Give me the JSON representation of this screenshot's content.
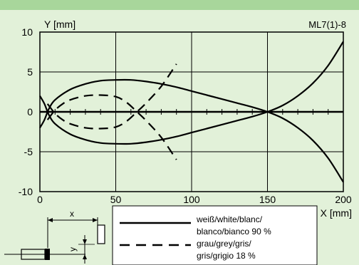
{
  "figure_id": "ML7(1)-8",
  "chart_data": {
    "type": "line",
    "ylabel": "Y [mm]",
    "xlabel": "X [mm]",
    "xlim": [
      0,
      200
    ],
    "ylim": [
      -10,
      10
    ],
    "x_ticks": [
      "0",
      "50",
      "100",
      "150",
      "200"
    ],
    "y_ticks": [
      "10",
      "5",
      "0",
      "-5",
      "-10"
    ],
    "grid": true,
    "series": [
      {
        "name": "weiß/white/blanc/ blanco/bianco 90 %",
        "style": "solid",
        "segments": [
          [
            [
              0,
              -2.0
            ],
            [
              3,
              -1.0
            ],
            [
              6,
              0.4
            ],
            [
              10,
              1.5
            ],
            [
              20,
              2.8
            ],
            [
              30,
              3.5
            ],
            [
              40,
              3.9
            ],
            [
              50,
              4.0
            ],
            [
              60,
              4.0
            ],
            [
              70,
              3.8
            ],
            [
              80,
              3.5
            ],
            [
              90,
              3.1
            ],
            [
              100,
              2.6
            ],
            [
              110,
              2.1
            ],
            [
              120,
              1.6
            ],
            [
              130,
              1.1
            ],
            [
              140,
              0.6
            ],
            [
              150,
              0.0
            ],
            [
              160,
              -0.8
            ],
            [
              170,
              -2.0
            ],
            [
              180,
              -3.6
            ],
            [
              190,
              -5.8
            ],
            [
              200,
              -8.8
            ]
          ],
          [
            [
              0,
              2.0
            ],
            [
              3,
              1.0
            ],
            [
              6,
              -0.4
            ],
            [
              10,
              -1.5
            ],
            [
              20,
              -2.8
            ],
            [
              30,
              -3.5
            ],
            [
              40,
              -3.9
            ],
            [
              50,
              -4.0
            ],
            [
              60,
              -4.0
            ],
            [
              70,
              -3.8
            ],
            [
              80,
              -3.5
            ],
            [
              90,
              -3.1
            ],
            [
              100,
              -2.6
            ],
            [
              110,
              -2.1
            ],
            [
              120,
              -1.6
            ],
            [
              130,
              -1.1
            ],
            [
              140,
              -0.6
            ],
            [
              150,
              0.0
            ],
            [
              160,
              0.8
            ],
            [
              170,
              2.0
            ],
            [
              180,
              3.6
            ],
            [
              190,
              5.8
            ],
            [
              200,
              8.8
            ]
          ]
        ]
      },
      {
        "name": "grau/grey/gris/ gris/grigio 18 %",
        "style": "dashed",
        "segments": [
          [
            [
              5,
              -1.0
            ],
            [
              10,
              0.2
            ],
            [
              15,
              1.0
            ],
            [
              20,
              1.5
            ],
            [
              30,
              2.0
            ],
            [
              40,
              2.1
            ],
            [
              50,
              1.9
            ],
            [
              57,
              1.2
            ],
            [
              64,
              0.0
            ],
            [
              70,
              -1.1
            ],
            [
              80,
              -3.2
            ],
            [
              90,
              -6.0
            ]
          ],
          [
            [
              5,
              1.0
            ],
            [
              10,
              -0.2
            ],
            [
              15,
              -1.0
            ],
            [
              20,
              -1.5
            ],
            [
              30,
              -2.0
            ],
            [
              40,
              -2.1
            ],
            [
              50,
              -1.9
            ],
            [
              57,
              -1.2
            ],
            [
              64,
              0.0
            ],
            [
              70,
              1.1
            ],
            [
              80,
              3.2
            ],
            [
              90,
              6.0
            ]
          ]
        ]
      }
    ]
  },
  "legend": {
    "entries": [
      {
        "line1": "weiß/white/blanc/",
        "line2": "blanco/bianco 90 %",
        "style": "solid"
      },
      {
        "line1": "grau/grey/gris/",
        "line2": "gris/grigio 18 %",
        "style": "dashed"
      }
    ]
  },
  "diagram": {
    "x_label": "x",
    "y_label": "y"
  },
  "colors": {
    "background": "#e2f1d9",
    "top_bar": "#a8d69b",
    "line": "#000000"
  }
}
